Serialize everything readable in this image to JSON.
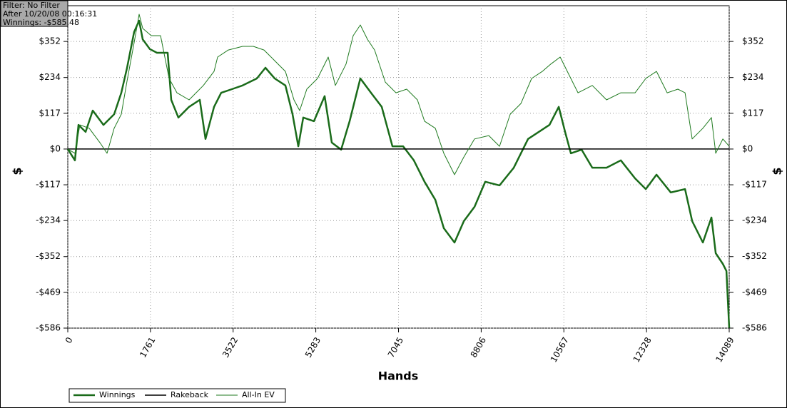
{
  "chart_data": {
    "type": "line",
    "filter_box": [
      "Filter: No Filter",
      "After 10/20/08 00:16:31",
      "Winnings: -$585.48"
    ],
    "x_label": "Hands",
    "y_label": "$",
    "y2_label": "$",
    "xlim": [
      0,
      14089
    ],
    "xticks": [
      0,
      1761,
      3522,
      5283,
      7045,
      8806,
      10567,
      12328,
      14089
    ],
    "ylim": [
      -586,
      469
    ],
    "yticks": [
      {
        "value": -586,
        "label": "-$586"
      },
      {
        "value": -469,
        "label": "-$469"
      },
      {
        "value": -352,
        "label": "-$352"
      },
      {
        "value": -234,
        "label": "-$234"
      },
      {
        "value": -117,
        "label": "-$117"
      },
      {
        "value": 0,
        "label": "$0"
      },
      {
        "value": 117,
        "label": "$117"
      },
      {
        "value": 234,
        "label": "$234"
      },
      {
        "value": 352,
        "label": "$352"
      }
    ],
    "grid": true,
    "series": [
      {
        "name": "Winnings",
        "color": "#1a6b1a",
        "width": 2.5,
        "x": [
          0,
          152,
          228,
          380,
          532,
          760,
          988,
          1140,
          1262,
          1414,
          1520,
          1596,
          1748,
          1900,
          2128,
          2204,
          2356,
          2584,
          2812,
          2934,
          3116,
          3268,
          3496,
          3724,
          4028,
          4210,
          4408,
          4636,
          4788,
          4910,
          5016,
          5244,
          5472,
          5624,
          5822,
          6004,
          6232,
          6460,
          6688,
          6916,
          7144,
          7372,
          7600,
          7828,
          8010,
          8238,
          8436,
          8664,
          8892,
          9196,
          9500,
          9804,
          10032,
          10260,
          10458,
          10594,
          10716,
          10944,
          11172,
          11476,
          11780,
          12084,
          12312,
          12540,
          12844,
          13148,
          13300,
          13528,
          13710,
          13802,
          13954,
          14030,
          14089
        ],
        "values": [
          0,
          -37,
          79,
          56,
          126,
          79,
          114,
          184,
          265,
          383,
          420,
          359,
          327,
          315,
          315,
          161,
          103,
          138,
          161,
          33,
          138,
          184,
          196,
          208,
          231,
          266,
          231,
          208,
          114,
          9,
          103,
          91,
          173,
          21,
          -2,
          91,
          231,
          184,
          138,
          9,
          9,
          -37,
          -107,
          -166,
          -259,
          -306,
          -236,
          -189,
          -107,
          -119,
          -61,
          33,
          56,
          79,
          138,
          56,
          -14,
          -2,
          -61,
          -61,
          -37,
          -96,
          -131,
          -84,
          -142,
          -131,
          -236,
          -306,
          -224,
          -341,
          -376,
          -399,
          -585.48
        ]
      },
      {
        "name": "Rakeback",
        "color": "#000000",
        "width": 1.5,
        "x": [
          0,
          14089
        ],
        "values": [
          0,
          0
        ]
      },
      {
        "name": "All-In EV",
        "color": "#1f7a1f",
        "width": 1,
        "x": [
          0,
          152,
          258,
          456,
          684,
          836,
          988,
          1140,
          1262,
          1414,
          1520,
          1596,
          1778,
          1976,
          2158,
          2326,
          2584,
          2888,
          3116,
          3192,
          3420,
          3724,
          3952,
          4180,
          4408,
          4636,
          4818,
          4940,
          5092,
          5320,
          5548,
          5700,
          5928,
          6080,
          6232,
          6384,
          6536,
          6764,
          6992,
          7220,
          7448,
          7600,
          7828,
          8010,
          8238,
          8436,
          8664,
          8968,
          9196,
          9424,
          9652,
          9880,
          10108,
          10290,
          10488,
          10640,
          10868,
          11172,
          11476,
          11780,
          12084,
          12312,
          12540,
          12768,
          12996,
          13148,
          13300,
          13528,
          13710,
          13802,
          13954,
          14089
        ],
        "values": [
          0,
          -14,
          79,
          68,
          21,
          -14,
          68,
          114,
          222,
          348,
          441,
          395,
          371,
          371,
          231,
          184,
          161,
          208,
          254,
          301,
          324,
          336,
          336,
          324,
          289,
          254,
          161,
          126,
          196,
          231,
          301,
          208,
          278,
          371,
          406,
          359,
          324,
          219,
          184,
          196,
          161,
          91,
          68,
          -14,
          -84,
          -26,
          33,
          44,
          9,
          114,
          149,
          231,
          254,
          278,
          301,
          254,
          184,
          208,
          161,
          184,
          184,
          231,
          254,
          184,
          196,
          184,
          33,
          68,
          103,
          -14,
          33,
          9
        ]
      }
    ]
  }
}
